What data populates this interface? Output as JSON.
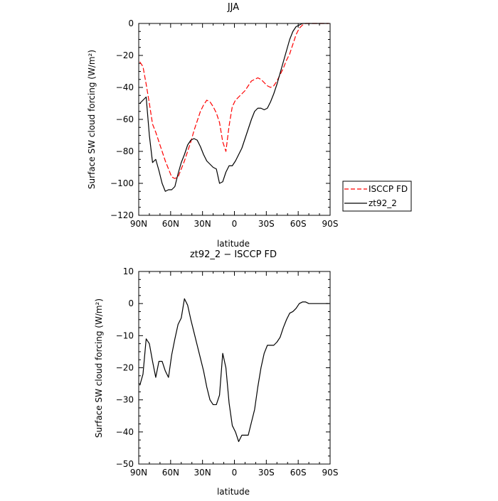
{
  "chart_data": [
    {
      "type": "line",
      "title": "JJA",
      "xlabel": "latitude",
      "ylabel": "Surface SW cloud forcing (W/m²)",
      "xlim": [
        90,
        -90
      ],
      "ylim": [
        -120,
        0
      ],
      "xtick_values": [
        90,
        60,
        30,
        0,
        -30,
        -60,
        -90
      ],
      "xtick_labels": [
        "90N",
        "60N",
        "30N",
        "0",
        "30S",
        "60S",
        "90S"
      ],
      "ytick_values": [
        0,
        -20,
        -40,
        -60,
        -80,
        -100,
        -120
      ],
      "ytick_labels": [
        "0",
        "−20",
        "−40",
        "−60",
        "−80",
        "−100",
        "−120"
      ],
      "legend_position": "right",
      "series": [
        {
          "name": "ISCCP FD",
          "color": "#ff0000",
          "dash": "dashed",
          "x": [
            89,
            86,
            83,
            80,
            77,
            74,
            71,
            68,
            65,
            62,
            59,
            56,
            53,
            50,
            47,
            44,
            41,
            38,
            35,
            32,
            29,
            26,
            23,
            20,
            17,
            14,
            11,
            8,
            5,
            2,
            -1,
            -4,
            -7,
            -10,
            -13,
            -16,
            -19,
            -22,
            -25,
            -28,
            -31,
            -34,
            -37,
            -40,
            -43,
            -46,
            -49,
            -52,
            -55,
            -58,
            -61,
            -64,
            -67,
            -70,
            -75,
            -80,
            -85,
            -89
          ],
          "values": [
            -24,
            -27,
            -38,
            -50,
            -63,
            -68,
            -74,
            -80,
            -86,
            -91,
            -96,
            -97,
            -96,
            -91,
            -86,
            -80,
            -74,
            -67,
            -61,
            -55,
            -51,
            -48,
            -49,
            -52,
            -56,
            -62,
            -74,
            -80,
            -64,
            -52,
            -48,
            -46,
            -44,
            -42,
            -39,
            -36,
            -35,
            -34,
            -35,
            -37,
            -39,
            -40,
            -39,
            -36,
            -32,
            -28,
            -23,
            -19,
            -13,
            -7,
            -3,
            -1,
            0,
            0,
            0,
            0,
            0,
            0
          ]
        },
        {
          "name": "zt92_2",
          "color": "#000000",
          "dash": "solid",
          "x": [
            89,
            86,
            83,
            80,
            77,
            74,
            71,
            68,
            65,
            62,
            59,
            56,
            53,
            50,
            47,
            44,
            41,
            38,
            35,
            32,
            29,
            26,
            23,
            20,
            17,
            14,
            11,
            8,
            5,
            2,
            -1,
            -4,
            -7,
            -10,
            -13,
            -16,
            -19,
            -22,
            -25,
            -28,
            -31,
            -34,
            -37,
            -40,
            -43,
            -46,
            -49,
            -52,
            -55,
            -58,
            -61,
            -64,
            -67,
            -70,
            -75,
            -80,
            -85,
            -89
          ],
          "values": [
            -50,
            -48,
            -46,
            -70,
            -87,
            -85,
            -92,
            -100,
            -105,
            -104,
            -104,
            -102,
            -94,
            -87,
            -82,
            -76,
            -73,
            -72,
            -73,
            -77,
            -82,
            -86,
            -88,
            -90,
            -91,
            -100,
            -99,
            -93,
            -89,
            -89,
            -86,
            -82,
            -78,
            -72,
            -66,
            -60,
            -55,
            -53,
            -53,
            -54,
            -53,
            -49,
            -44,
            -38,
            -31,
            -24,
            -17,
            -10,
            -5,
            -2,
            -1,
            0,
            0,
            0,
            0,
            0,
            0,
            0
          ]
        }
      ]
    },
    {
      "type": "line",
      "title": "zt92_2 − ISCCP FD",
      "xlabel": "latitude",
      "ylabel": "Surface SW cloud forcing (W/m²)",
      "xlim": [
        90,
        -90
      ],
      "ylim": [
        -50,
        10
      ],
      "xtick_values": [
        90,
        60,
        30,
        0,
        -30,
        -60,
        -90
      ],
      "xtick_labels": [
        "90N",
        "60N",
        "30N",
        "0",
        "30S",
        "60S",
        "90S"
      ],
      "ytick_values": [
        10,
        0,
        -10,
        -20,
        -30,
        -40,
        -50
      ],
      "ytick_labels": [
        "10",
        "0",
        "−10",
        "−20",
        "−30",
        "−40",
        "−50"
      ],
      "series": [
        {
          "color": "#000000",
          "dash": "solid",
          "x": [
            89,
            86,
            83,
            80,
            77,
            74,
            71,
            68,
            65,
            62,
            59,
            56,
            53,
            50,
            47,
            44,
            41,
            38,
            35,
            32,
            29,
            26,
            23,
            20,
            17,
            14,
            11,
            8,
            5,
            2,
            -1,
            -4,
            -7,
            -10,
            -13,
            -16,
            -19,
            -22,
            -25,
            -28,
            -31,
            -34,
            -37,
            -40,
            -43,
            -46,
            -49,
            -52,
            -55,
            -58,
            -61,
            -64,
            -67,
            -70,
            -75,
            -80,
            -85,
            -89
          ],
          "values": [
            -25.5,
            -22,
            -11,
            -12.5,
            -18,
            -23,
            -18,
            -18,
            -21,
            -23,
            -16,
            -11,
            -6.5,
            -4.5,
            1.5,
            -0.5,
            -5,
            -9,
            -13,
            -17,
            -21,
            -26,
            -30,
            -31.5,
            -31.5,
            -28.5,
            -15.5,
            -20,
            -31,
            -38,
            -40,
            -43,
            -41,
            -41,
            -41,
            -37,
            -33,
            -26,
            -20,
            -15.5,
            -13,
            -13,
            -13,
            -12,
            -10.5,
            -7.5,
            -5,
            -3,
            -2.5,
            -1.5,
            0,
            0.5,
            0.5,
            0,
            0,
            0,
            0,
            0
          ]
        }
      ]
    }
  ]
}
